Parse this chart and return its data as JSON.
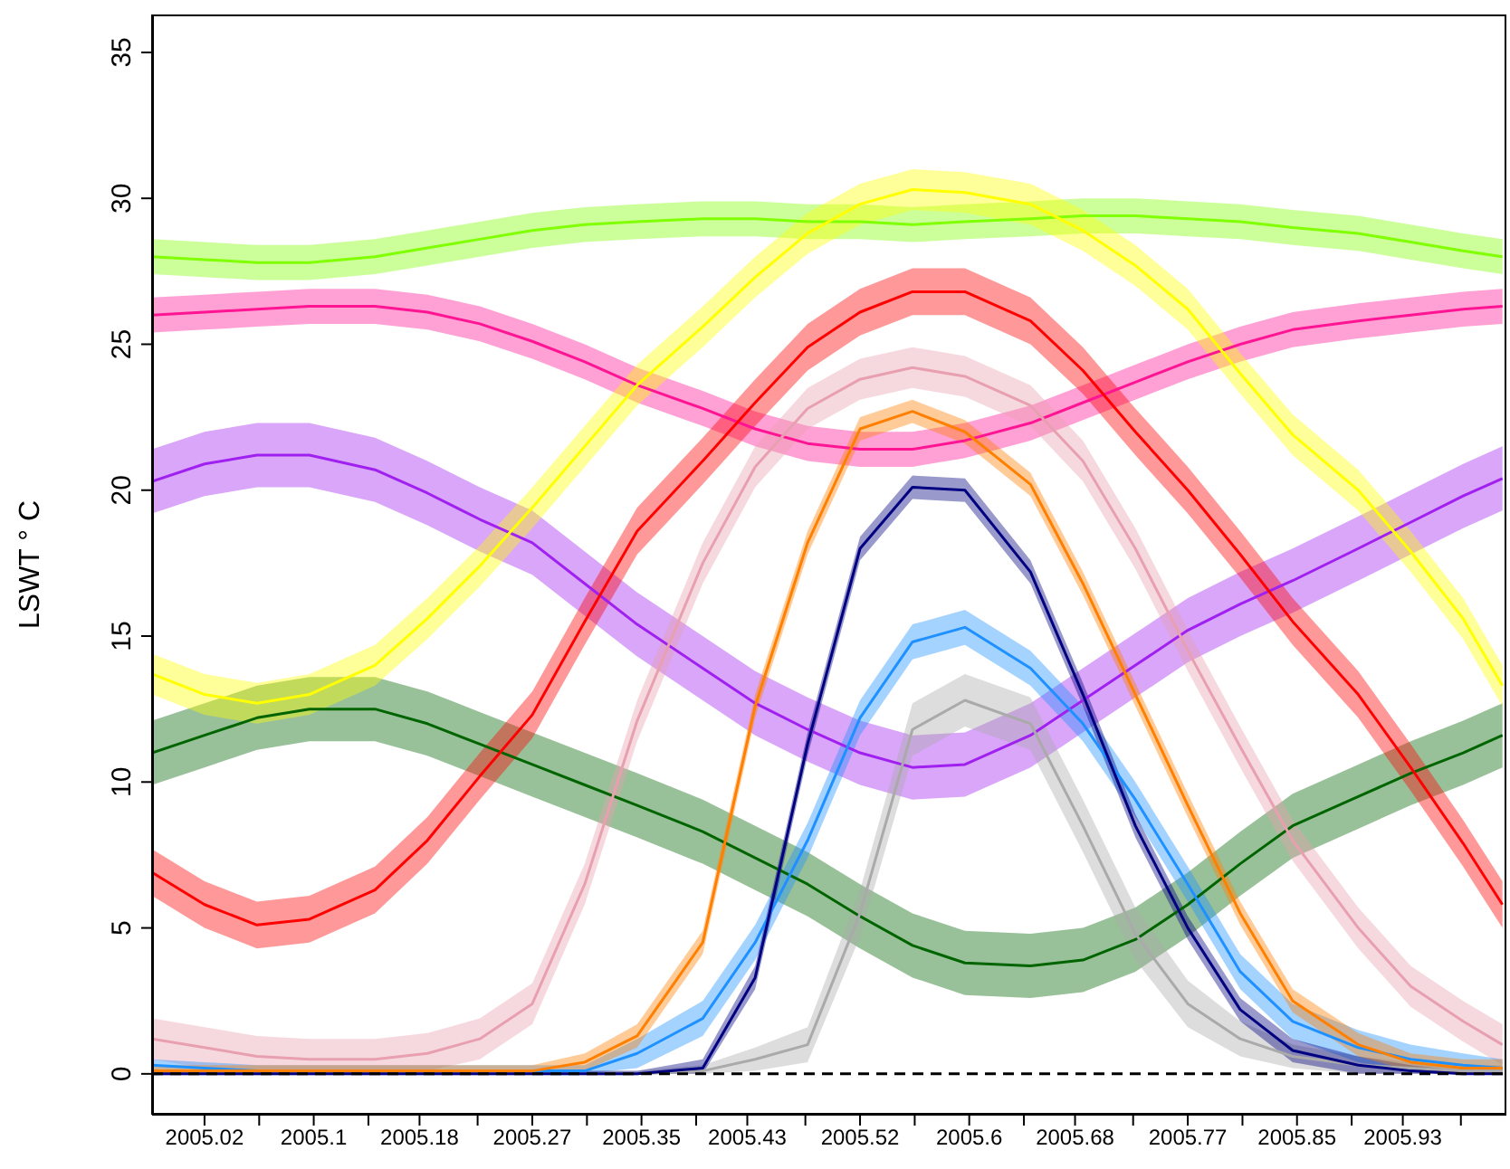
{
  "chart_data": {
    "type": "line",
    "ylabel": "LSWT ° C",
    "marker": "none",
    "line_style": "solid",
    "xlim": [
      2004.98,
      2006.013
    ],
    "ylim": [
      -1.4,
      36.3
    ],
    "xticks": [
      {
        "value": 2005.02,
        "label": "2005.02"
      },
      {
        "value": 2005.0617,
        "label": null
      },
      {
        "value": 2005.1033,
        "label": "2005.1"
      },
      {
        "value": 2005.145,
        "label": null
      },
      {
        "value": 2005.184,
        "label": "2005.18"
      },
      {
        "value": 2005.2283,
        "label": null
      },
      {
        "value": 2005.27,
        "label": "2005.27"
      },
      {
        "value": 2005.3117,
        "label": null
      },
      {
        "value": 2005.3533,
        "label": "2005.35"
      },
      {
        "value": 2005.395,
        "label": null
      },
      {
        "value": 2005.434,
        "label": "2005.43"
      },
      {
        "value": 2005.4783,
        "label": null
      },
      {
        "value": 2005.52,
        "label": "2005.52"
      },
      {
        "value": 2005.5617,
        "label": null
      },
      {
        "value": 2005.6033,
        "label": "2005.6"
      },
      {
        "value": 2005.645,
        "label": null
      },
      {
        "value": 2005.684,
        "label": "2005.68"
      },
      {
        "value": 2005.7283,
        "label": null
      },
      {
        "value": 2005.77,
        "label": "2005.77"
      },
      {
        "value": 2005.8117,
        "label": null
      },
      {
        "value": 2005.8533,
        "label": "2005.85"
      },
      {
        "value": 2005.895,
        "label": null
      },
      {
        "value": 2005.934,
        "label": "2005.93"
      },
      {
        "value": 2005.9783,
        "label": null
      }
    ],
    "yticks": [
      0,
      5,
      10,
      15,
      20,
      25,
      30,
      35
    ],
    "ref_lines": [
      {
        "axis": "y",
        "value": 0,
        "color": "#000000",
        "line_style": "dashed"
      }
    ],
    "x": [
      2004.98,
      2005.02,
      2005.06,
      2005.1,
      2005.15,
      2005.19,
      2005.23,
      2005.27,
      2005.31,
      2005.35,
      2005.4,
      2005.44,
      2005.48,
      2005.52,
      2005.56,
      2005.6,
      2005.65,
      2005.69,
      2005.73,
      2005.77,
      2005.81,
      2005.85,
      2005.9,
      2005.94,
      2005.98,
      2006.01
    ],
    "series": [
      {
        "color": "#006400",
        "values": [
          11.0,
          11.6,
          12.2,
          12.5,
          12.5,
          12.0,
          11.3,
          10.6,
          9.9,
          9.2,
          8.3,
          7.4,
          6.5,
          5.4,
          4.4,
          3.8,
          3.7,
          3.9,
          4.6,
          5.8,
          7.2,
          8.5,
          9.5,
          10.3,
          11.0,
          11.6
        ],
        "lower": [
          9.9,
          10.5,
          11.1,
          11.4,
          11.4,
          10.9,
          10.2,
          9.5,
          8.8,
          8.1,
          7.2,
          6.3,
          5.4,
          4.3,
          3.3,
          2.7,
          2.6,
          2.8,
          3.5,
          4.7,
          6.1,
          7.4,
          8.4,
          9.2,
          9.9,
          10.5
        ],
        "upper": [
          12.1,
          12.7,
          13.3,
          13.6,
          13.6,
          13.1,
          12.4,
          11.7,
          11.0,
          10.3,
          9.4,
          8.5,
          7.6,
          6.5,
          5.5,
          4.9,
          4.8,
          5.0,
          5.7,
          6.9,
          8.3,
          9.6,
          10.6,
          11.4,
          12.1,
          12.7
        ]
      },
      {
        "color": "#a020f0",
        "values": [
          20.3,
          20.9,
          21.2,
          21.2,
          20.7,
          19.9,
          19.0,
          18.2,
          16.8,
          15.4,
          13.9,
          12.7,
          11.8,
          11.0,
          10.5,
          10.6,
          11.6,
          12.8,
          14.0,
          15.2,
          16.1,
          16.9,
          18.0,
          18.9,
          19.8,
          20.4
        ],
        "lower": [
          19.2,
          19.8,
          20.1,
          20.1,
          19.6,
          18.8,
          17.9,
          17.1,
          15.7,
          14.3,
          12.8,
          11.6,
          10.7,
          9.9,
          9.4,
          9.5,
          10.5,
          11.7,
          12.9,
          14.1,
          15.0,
          15.8,
          16.9,
          17.8,
          18.7,
          19.3
        ],
        "upper": [
          21.4,
          22.0,
          22.3,
          22.3,
          21.8,
          21.0,
          20.1,
          19.3,
          17.9,
          16.5,
          15.0,
          13.8,
          12.9,
          12.1,
          11.6,
          11.7,
          12.7,
          13.9,
          15.1,
          16.3,
          17.2,
          18.0,
          19.1,
          20.0,
          20.9,
          21.5
        ]
      },
      {
        "color": "#ff1493",
        "values": [
          26.0,
          26.1,
          26.2,
          26.3,
          26.3,
          26.1,
          25.7,
          25.1,
          24.4,
          23.6,
          22.8,
          22.1,
          21.6,
          21.4,
          21.4,
          21.7,
          22.3,
          23.0,
          23.7,
          24.4,
          25.0,
          25.5,
          25.8,
          26.0,
          26.2,
          26.3
        ],
        "lower": [
          25.4,
          25.5,
          25.6,
          25.7,
          25.7,
          25.5,
          25.1,
          24.5,
          23.8,
          23.0,
          22.2,
          21.5,
          21.0,
          20.8,
          20.8,
          21.1,
          21.7,
          22.4,
          23.1,
          23.8,
          24.4,
          24.9,
          25.2,
          25.4,
          25.6,
          25.7
        ],
        "upper": [
          26.6,
          26.7,
          26.8,
          26.9,
          26.9,
          26.7,
          26.3,
          25.7,
          25.0,
          24.2,
          23.4,
          22.7,
          22.2,
          22.0,
          22.0,
          22.3,
          22.9,
          23.6,
          24.3,
          25.0,
          25.6,
          26.1,
          26.4,
          26.6,
          26.8,
          26.9
        ]
      },
      {
        "color": "#7fff00",
        "values": [
          28.0,
          27.9,
          27.8,
          27.8,
          28.0,
          28.3,
          28.6,
          28.9,
          29.1,
          29.2,
          29.3,
          29.3,
          29.2,
          29.2,
          29.1,
          29.2,
          29.3,
          29.4,
          29.4,
          29.3,
          29.2,
          29.0,
          28.8,
          28.5,
          28.2,
          28.0
        ],
        "lower": [
          27.4,
          27.3,
          27.2,
          27.2,
          27.4,
          27.7,
          28.0,
          28.3,
          28.5,
          28.6,
          28.7,
          28.7,
          28.6,
          28.6,
          28.5,
          28.6,
          28.7,
          28.8,
          28.8,
          28.7,
          28.6,
          28.4,
          28.2,
          27.9,
          27.6,
          27.4
        ],
        "upper": [
          28.6,
          28.5,
          28.4,
          28.4,
          28.6,
          28.9,
          29.2,
          29.5,
          29.7,
          29.8,
          29.9,
          29.9,
          29.8,
          29.8,
          29.7,
          29.8,
          29.9,
          30.0,
          30.0,
          29.9,
          29.8,
          29.6,
          29.4,
          29.1,
          28.8,
          28.6
        ]
      },
      {
        "color": "#e8a0b0",
        "values": [
          1.2,
          0.9,
          0.6,
          0.5,
          0.5,
          0.7,
          1.2,
          2.4,
          6.5,
          12.1,
          17.5,
          20.8,
          22.8,
          23.8,
          24.2,
          23.9,
          22.9,
          21.0,
          18.0,
          14.5,
          11.2,
          8.0,
          5.0,
          3.0,
          1.8,
          1.0
        ],
        "lower": [
          0.5,
          0.2,
          0.0,
          0.0,
          0.0,
          0.1,
          0.5,
          1.7,
          5.8,
          11.4,
          16.8,
          20.1,
          22.1,
          23.1,
          23.5,
          23.2,
          22.2,
          20.3,
          17.3,
          13.8,
          10.5,
          7.3,
          4.3,
          2.3,
          1.1,
          0.3
        ],
        "upper": [
          1.9,
          1.6,
          1.3,
          1.2,
          1.2,
          1.4,
          1.9,
          3.1,
          7.2,
          12.8,
          18.2,
          21.5,
          23.5,
          24.5,
          24.9,
          24.6,
          23.6,
          21.7,
          18.7,
          15.2,
          11.9,
          8.7,
          5.7,
          3.7,
          2.5,
          1.7
        ]
      },
      {
        "color": "#ffff00",
        "values": [
          13.7,
          13.0,
          12.7,
          13.0,
          14.0,
          15.6,
          17.4,
          19.4,
          21.5,
          23.6,
          25.6,
          27.3,
          28.8,
          29.8,
          30.3,
          30.2,
          29.8,
          28.9,
          27.7,
          26.2,
          24.0,
          21.9,
          20.0,
          17.9,
          15.6,
          13.3
        ],
        "lower": [
          13.0,
          12.3,
          12.0,
          12.3,
          13.3,
          14.9,
          16.7,
          18.7,
          20.8,
          22.9,
          24.9,
          26.6,
          28.1,
          29.1,
          29.6,
          29.5,
          29.1,
          28.2,
          27.0,
          25.5,
          23.3,
          21.2,
          19.3,
          17.2,
          14.9,
          12.6
        ],
        "upper": [
          14.4,
          13.7,
          13.4,
          13.7,
          14.7,
          16.3,
          18.1,
          20.1,
          22.2,
          24.3,
          26.3,
          28.0,
          29.5,
          30.5,
          31.0,
          30.9,
          30.5,
          29.6,
          28.4,
          26.9,
          24.7,
          22.6,
          20.7,
          18.6,
          16.3,
          14.0
        ]
      },
      {
        "color": "#ff0000",
        "values": [
          6.9,
          5.8,
          5.1,
          5.3,
          6.3,
          8.0,
          10.2,
          12.3,
          15.5,
          18.6,
          21.0,
          23.0,
          24.9,
          26.1,
          26.8,
          26.8,
          25.8,
          24.1,
          22.0,
          20.0,
          17.8,
          15.5,
          13.0,
          10.5,
          7.9,
          5.8
        ],
        "lower": [
          6.1,
          5.0,
          4.3,
          4.5,
          5.5,
          7.2,
          9.4,
          11.5,
          14.7,
          17.8,
          20.2,
          22.2,
          24.1,
          25.3,
          26.0,
          26.0,
          25.0,
          23.3,
          21.2,
          19.2,
          17.0,
          14.7,
          12.2,
          9.7,
          7.1,
          5.0
        ],
        "upper": [
          7.7,
          6.6,
          5.9,
          6.1,
          7.1,
          8.8,
          11.0,
          13.1,
          16.3,
          19.4,
          21.8,
          23.8,
          25.7,
          26.9,
          27.6,
          27.6,
          26.6,
          24.9,
          22.8,
          20.8,
          18.6,
          16.3,
          13.8,
          11.3,
          8.7,
          6.6
        ]
      },
      {
        "color": "#aaaaaa",
        "values": [
          0,
          0,
          0,
          0,
          0,
          0,
          0,
          0,
          0,
          0,
          0.1,
          0.5,
          1.0,
          5.5,
          11.8,
          12.8,
          12.0,
          8.5,
          4.8,
          2.4,
          1.2,
          0.6,
          0.3,
          0.2,
          0.1,
          0.1
        ],
        "lower": [
          0,
          0,
          0,
          0,
          0,
          0,
          0,
          0,
          0,
          0,
          0,
          0.1,
          0.4,
          4.7,
          10.9,
          11.9,
          11.1,
          7.6,
          3.9,
          1.6,
          0.6,
          0.2,
          0,
          0,
          0,
          0
        ],
        "upper": [
          0.1,
          0.1,
          0.1,
          0.1,
          0.1,
          0.1,
          0.1,
          0.1,
          0.1,
          0.1,
          0.3,
          0.9,
          1.6,
          6.3,
          12.7,
          13.7,
          12.9,
          9.4,
          5.7,
          3.2,
          1.8,
          1.0,
          0.6,
          0.4,
          0.3,
          0.3
        ]
      },
      {
        "color": "#1e90ff",
        "values": [
          0.3,
          0.2,
          0.1,
          0.1,
          0.1,
          0.1,
          0.1,
          0.1,
          0.1,
          0.7,
          1.9,
          4.5,
          8.0,
          12.2,
          14.8,
          15.3,
          13.9,
          12.0,
          9.4,
          6.5,
          3.5,
          1.8,
          0.9,
          0.5,
          0.3,
          0.2
        ],
        "lower": [
          0.1,
          0,
          0,
          0,
          0,
          0,
          0,
          0,
          0,
          0.2,
          1.3,
          3.9,
          7.4,
          11.6,
          14.2,
          14.7,
          13.3,
          11.4,
          8.8,
          5.9,
          2.9,
          1.2,
          0.4,
          0.1,
          0,
          0
        ],
        "upper": [
          0.5,
          0.4,
          0.3,
          0.3,
          0.3,
          0.3,
          0.3,
          0.3,
          0.3,
          1.2,
          2.5,
          5.1,
          8.6,
          12.8,
          15.4,
          15.9,
          14.5,
          12.6,
          10.0,
          7.1,
          4.1,
          2.4,
          1.5,
          1.0,
          0.7,
          0.5
        ]
      },
      {
        "color": "#000080",
        "values": [
          0,
          0,
          0,
          0,
          0,
          0,
          0,
          0,
          0,
          0,
          0.2,
          3.3,
          11.3,
          18.0,
          20.1,
          20.0,
          17.2,
          13.0,
          8.5,
          5.0,
          2.2,
          0.8,
          0.3,
          0.1,
          0,
          0
        ],
        "lower": [
          0,
          0,
          0,
          0,
          0,
          0,
          0,
          0,
          0,
          0,
          0,
          2.9,
          10.9,
          17.6,
          19.7,
          19.6,
          16.8,
          12.6,
          8.1,
          4.6,
          1.8,
          0.4,
          0,
          0,
          0,
          0
        ],
        "upper": [
          0.1,
          0.1,
          0.1,
          0.1,
          0.1,
          0.1,
          0.1,
          0.1,
          0.1,
          0.1,
          0.5,
          3.7,
          11.7,
          18.4,
          20.5,
          20.4,
          17.6,
          13.4,
          8.9,
          5.4,
          2.6,
          1.2,
          0.6,
          0.3,
          0.1,
          0.1
        ]
      },
      {
        "color": "#ff7f00",
        "values": [
          0.1,
          0.1,
          0.1,
          0.1,
          0.1,
          0.1,
          0.1,
          0.1,
          0.4,
          1.3,
          4.5,
          12.6,
          18.2,
          22.1,
          22.7,
          22.0,
          20.2,
          16.8,
          13.0,
          9.2,
          5.5,
          2.5,
          1.0,
          0.4,
          0.2,
          0.2
        ],
        "lower": [
          0,
          0,
          0,
          0,
          0,
          0,
          0,
          0,
          0.1,
          0.9,
          4.1,
          12.2,
          17.8,
          21.7,
          22.3,
          21.6,
          19.8,
          16.4,
          12.6,
          8.8,
          5.1,
          2.1,
          0.6,
          0.1,
          0,
          0
        ],
        "upper": [
          0.3,
          0.3,
          0.3,
          0.3,
          0.3,
          0.3,
          0.3,
          0.3,
          0.7,
          1.7,
          4.9,
          13.0,
          18.6,
          22.5,
          23.1,
          22.4,
          20.6,
          17.2,
          13.4,
          9.6,
          5.9,
          2.9,
          1.4,
          0.7,
          0.5,
          0.5
        ]
      }
    ]
  }
}
